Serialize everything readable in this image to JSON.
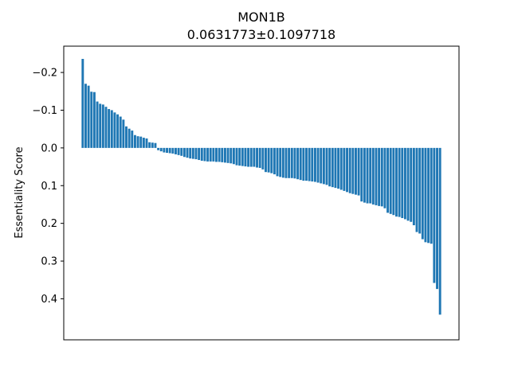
{
  "chart_data": {
    "type": "bar",
    "title": "MON1B",
    "subtitle": "0.0631773±0.1097718",
    "xlabel": "",
    "ylabel": "Essentiality Score",
    "y_inverted": true,
    "ylim": [
      -0.236,
      0.475
    ],
    "yticks": [
      -0.2,
      -0.1,
      0.0,
      0.1,
      0.2,
      0.3,
      0.4
    ],
    "ytick_labels": [
      "−0.2",
      "−0.1",
      "0.0",
      "0.1",
      "0.2",
      "0.3",
      "0.4"
    ],
    "grid": false,
    "bar_color": "#1f77b4",
    "values": [
      -0.236,
      -0.17,
      -0.165,
      -0.149,
      -0.148,
      -0.123,
      -0.117,
      -0.115,
      -0.109,
      -0.103,
      -0.1,
      -0.094,
      -0.089,
      -0.083,
      -0.075,
      -0.057,
      -0.051,
      -0.046,
      -0.034,
      -0.031,
      -0.03,
      -0.027,
      -0.025,
      -0.015,
      -0.014,
      -0.013,
      0.006,
      0.009,
      0.012,
      0.013,
      0.014,
      0.015,
      0.017,
      0.019,
      0.021,
      0.024,
      0.026,
      0.028,
      0.029,
      0.03,
      0.032,
      0.034,
      0.035,
      0.036,
      0.036,
      0.036,
      0.037,
      0.037,
      0.038,
      0.039,
      0.04,
      0.041,
      0.043,
      0.046,
      0.047,
      0.048,
      0.049,
      0.05,
      0.05,
      0.05,
      0.052,
      0.053,
      0.057,
      0.064,
      0.065,
      0.067,
      0.07,
      0.075,
      0.077,
      0.079,
      0.08,
      0.08,
      0.08,
      0.081,
      0.083,
      0.085,
      0.087,
      0.087,
      0.088,
      0.089,
      0.09,
      0.092,
      0.094,
      0.096,
      0.098,
      0.102,
      0.104,
      0.106,
      0.108,
      0.111,
      0.114,
      0.117,
      0.12,
      0.122,
      0.124,
      0.126,
      0.142,
      0.145,
      0.147,
      0.147,
      0.15,
      0.152,
      0.154,
      0.155,
      0.16,
      0.172,
      0.175,
      0.178,
      0.182,
      0.183,
      0.186,
      0.189,
      0.193,
      0.196,
      0.205,
      0.223,
      0.227,
      0.242,
      0.25,
      0.252,
      0.254,
      0.358,
      0.374,
      0.442
    ]
  }
}
